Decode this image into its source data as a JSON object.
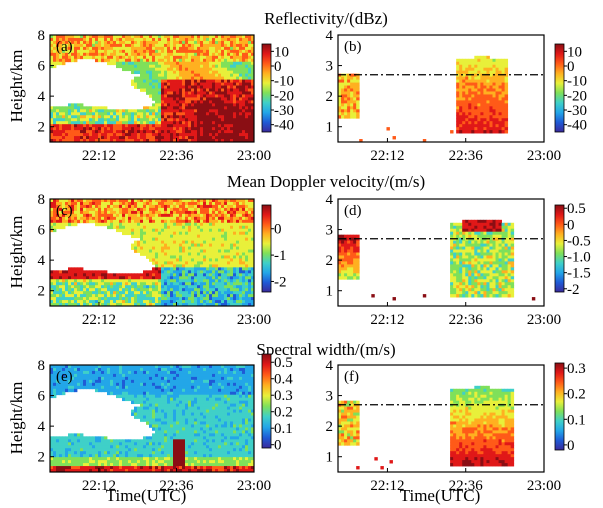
{
  "figure": {
    "section_titles": [
      "Reflectivity/(dBz)",
      "Mean Doppler velocity/(m/s)",
      "Spectral width/(m/s)"
    ],
    "y_axis_label": "Height/km",
    "x_axis_label": "Time(UTC)"
  },
  "palette": [
    "#f5f5ff",
    "#3a2a9c",
    "#1f5bd6",
    "#23a6e8",
    "#3fd0c8",
    "#7fe05a",
    "#e8f03a",
    "#ffb020",
    "#ff5a18",
    "#e01818",
    "#8a0e14"
  ],
  "chart_data": [
    {
      "type": "heatmap",
      "panel": "(a)",
      "x_ticks": [
        "22:12",
        "22:36",
        "23:00"
      ],
      "y_ticks": [
        "2",
        "4",
        "6",
        "8"
      ],
      "ylim": [
        1,
        8
      ],
      "colorbar_ticks": [
        "10",
        "0",
        "-10",
        "-20",
        "-30",
        "-40"
      ],
      "colorbar_range": [
        -45,
        15
      ],
      "field": "refl_a"
    },
    {
      "type": "heatmap",
      "panel": "(b)",
      "x_ticks": [
        "22:12",
        "22:36",
        "23:00"
      ],
      "y_ticks": [
        "1",
        "2",
        "3",
        "4"
      ],
      "ylim": [
        0.5,
        4
      ],
      "colorbar_ticks": [
        "10",
        "0",
        "-10",
        "-20",
        "-30",
        "-40"
      ],
      "colorbar_range": [
        -45,
        15
      ],
      "reference_line_height_km": 2.7,
      "field": "refl_b"
    },
    {
      "type": "heatmap",
      "panel": "(c)",
      "x_ticks": [
        "22:12",
        "22:36",
        "23:00"
      ],
      "y_ticks": [
        "2",
        "4",
        "6",
        "8"
      ],
      "ylim": [
        1,
        8
      ],
      "colorbar_ticks": [
        "0",
        "-1",
        "-2"
      ],
      "colorbar_range": [
        -2.4,
        0.9
      ],
      "field": "vel_c"
    },
    {
      "type": "heatmap",
      "panel": "(d)",
      "x_ticks": [
        "22:12",
        "22:36",
        "23:00"
      ],
      "y_ticks": [
        "1",
        "2",
        "3",
        "4"
      ],
      "ylim": [
        0.5,
        4
      ],
      "colorbar_ticks": [
        "0.5",
        "0",
        "-0.5",
        "-1.0",
        "-1.5",
        "-2"
      ],
      "colorbar_range": [
        -2.1,
        0.6
      ],
      "reference_line_height_km": 2.7,
      "field": "vel_d"
    },
    {
      "type": "heatmap",
      "panel": "(e)",
      "x_ticks": [
        "22:12",
        "22:36",
        "23:00"
      ],
      "y_ticks": [
        "2",
        "4",
        "6",
        "8"
      ],
      "ylim": [
        1,
        8
      ],
      "colorbar_ticks": [
        "0.5",
        "0.4",
        "0.3",
        "0.2",
        "0.1",
        "0"
      ],
      "colorbar_range": [
        -0.02,
        0.55
      ],
      "field": "sw_e"
    },
    {
      "type": "heatmap",
      "panel": "(f)",
      "x_ticks": [
        "22:12",
        "22:36",
        "23:00"
      ],
      "y_ticks": [
        "1",
        "2",
        "3",
        "4"
      ],
      "ylim": [
        0.5,
        4
      ],
      "colorbar_ticks": [
        "0.3",
        "0.2",
        "0.1",
        "0"
      ],
      "colorbar_range": [
        -0.02,
        0.32
      ],
      "reference_line_height_km": 2.7,
      "field": "sw_f"
    }
  ]
}
